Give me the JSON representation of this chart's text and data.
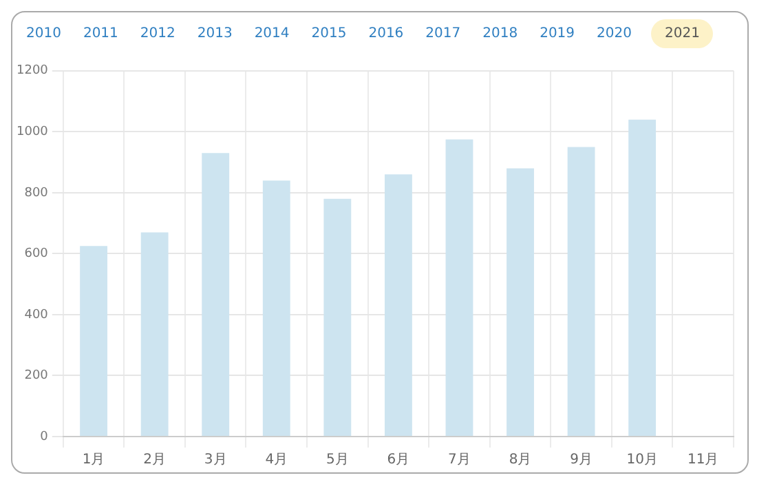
{
  "chart_data": {
    "type": "bar",
    "annotations": [
      "2010",
      "2011",
      "2012",
      "2013",
      "2014",
      "2015",
      "2016",
      "2017",
      "2018",
      "2019",
      "2020",
      "2021"
    ],
    "categories": [
      "1月",
      "2月",
      "3月",
      "4月",
      "5月",
      "6月",
      "7月",
      "8月",
      "9月",
      "10月",
      "11月"
    ],
    "values": [
      625,
      670,
      930,
      840,
      780,
      860,
      975,
      880,
      950,
      1040,
      null
    ],
    "color": "#cde4f0",
    "ylim": [
      0,
      1200
    ],
    "yticks": [
      0,
      200,
      400,
      600,
      800,
      1000,
      1200
    ],
    "grid": true
  }
}
